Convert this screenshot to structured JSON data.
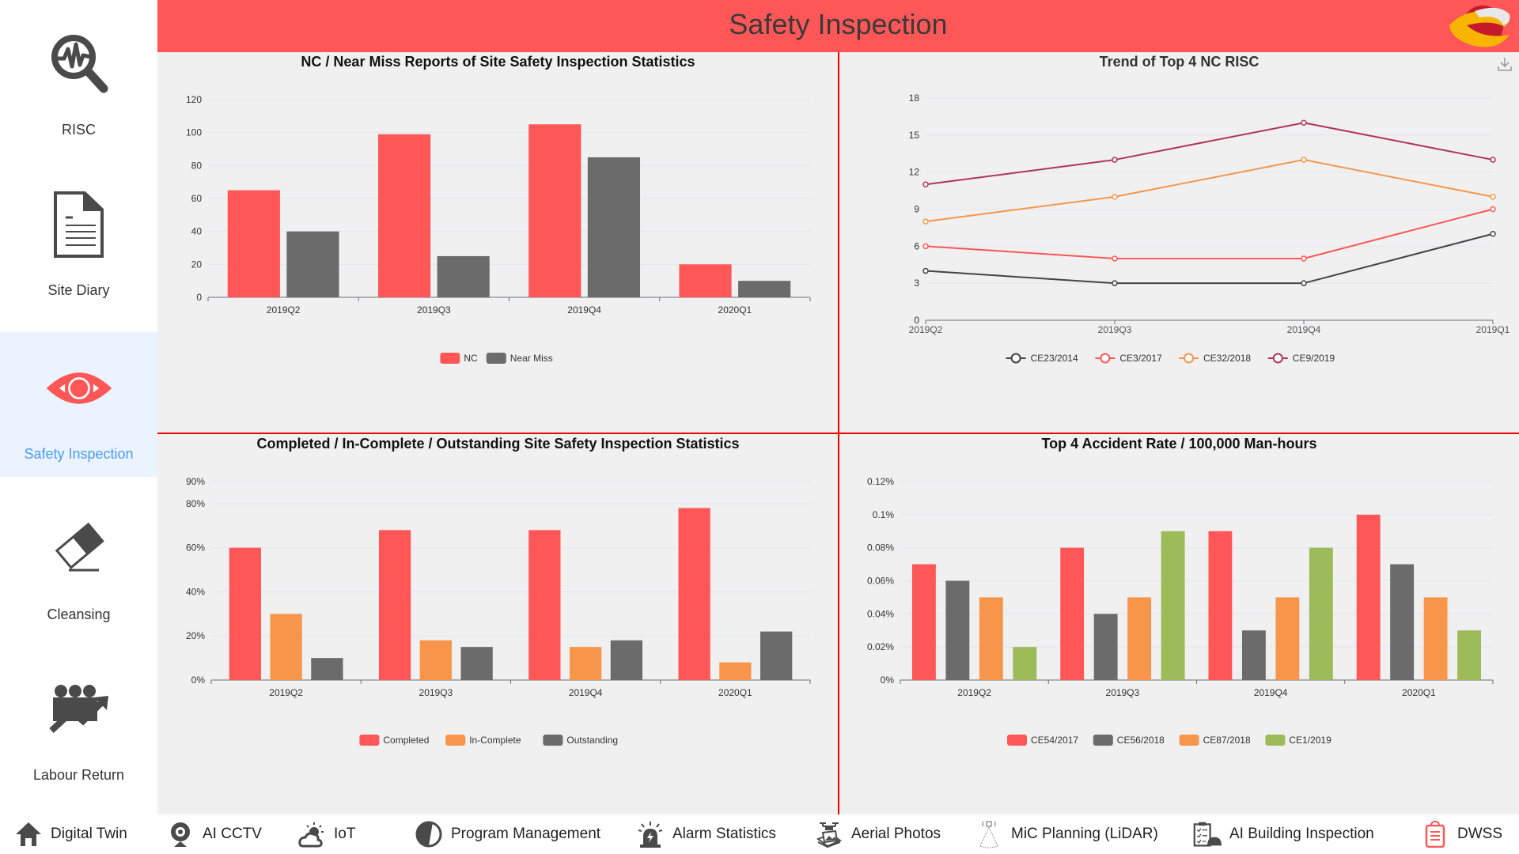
{
  "header": {
    "title": "Safety Inspection",
    "logo": "brand-logo"
  },
  "sidebar": {
    "active": "Safety Inspection",
    "items": [
      {
        "label": "RISC",
        "icon": "magnifier-pulse-icon"
      },
      {
        "label": "Site Diary",
        "icon": "document-icon"
      },
      {
        "label": "Safety Inspection",
        "icon": "eye-icon"
      },
      {
        "label": "Cleansing",
        "icon": "eraser-icon"
      },
      {
        "label": "Labour Return",
        "icon": "workers-trend-icon"
      }
    ]
  },
  "bottom_nav": [
    {
      "label": "Digital Twin",
      "icon": "home-icon"
    },
    {
      "label": "AI CCTV",
      "icon": "webcam-icon"
    },
    {
      "label": "IoT",
      "icon": "weather-cloud-icon"
    },
    {
      "label": "Program Management",
      "icon": "half-circle-icon"
    },
    {
      "label": "Alarm Statistics",
      "icon": "alarm-siren-icon"
    },
    {
      "label": "Aerial Photos",
      "icon": "drone-photos-icon"
    },
    {
      "label": "MiC Planning (LiDAR)",
      "icon": "lidar-icon"
    },
    {
      "label": "AI Building Inspection",
      "icon": "clipboard-helmet-icon"
    },
    {
      "label": "DWSS",
      "icon": "clipboard-red-icon"
    }
  ],
  "colors": {
    "accent": "#ff5757",
    "divider": "#e60000",
    "active_text": "#4a9cf5",
    "active_bg": "#eaf3fe"
  },
  "chart_data": [
    {
      "id": "nc-near-miss",
      "type": "bar",
      "title": "NC / Near Miss Reports of Site Safety Inspection Statistics",
      "categories": [
        "2019Q2",
        "2019Q3",
        "2019Q4",
        "2020Q1"
      ],
      "series": [
        {
          "name": "NC",
          "color": "#ff5757",
          "values": [
            65,
            99,
            105,
            20
          ]
        },
        {
          "name": "Near Miss",
          "color": "#6b6b6b",
          "values": [
            40,
            25,
            85,
            10
          ]
        }
      ],
      "yticks": [
        0,
        20,
        40,
        60,
        80,
        100,
        120
      ],
      "ytick_labels": [
        "0",
        "20",
        "40",
        "60",
        "80",
        "100",
        "120"
      ],
      "ylim": [
        0,
        120
      ],
      "grid": true,
      "legend": "bottom"
    },
    {
      "id": "nc-risc-trend",
      "type": "line",
      "title": "Trend of Top 4 NC RISC",
      "categories": [
        "2019Q2",
        "2019Q3",
        "2019Q4",
        "2019Q1"
      ],
      "series": [
        {
          "name": "CE23/2014",
          "color": "#444444",
          "values": [
            4,
            3,
            3,
            7
          ]
        },
        {
          "name": "CE3/2017",
          "color": "#ff5757",
          "values": [
            6,
            5,
            5,
            9
          ]
        },
        {
          "name": "CE32/2018",
          "color": "#f7964a",
          "values": [
            8,
            10,
            13,
            10
          ]
        },
        {
          "name": "CE9/2019",
          "color": "#b0355a",
          "values": [
            11,
            13,
            16,
            13
          ]
        }
      ],
      "yticks": [
        0,
        3,
        6,
        9,
        12,
        15,
        18
      ],
      "ytick_labels": [
        "0",
        "3",
        "6",
        "9",
        "12",
        "15",
        "18"
      ],
      "ylim": [
        0,
        18
      ],
      "grid": true,
      "legend": "bottom",
      "toolbox": "download"
    },
    {
      "id": "inspection-status",
      "type": "bar",
      "title": "Completed / In-Complete / Outstanding Site Safety Inspection Statistics",
      "categories": [
        "2019Q2",
        "2019Q3",
        "2019Q4",
        "2020Q1"
      ],
      "series": [
        {
          "name": "Completed",
          "color": "#ff5757",
          "values": [
            60,
            68,
            68,
            78
          ]
        },
        {
          "name": "In-Complete",
          "color": "#f7964a",
          "values": [
            30,
            18,
            15,
            8
          ]
        },
        {
          "name": "Outstanding",
          "color": "#6b6b6b",
          "values": [
            10,
            15,
            18,
            22
          ]
        }
      ],
      "yticks": [
        0,
        20,
        40,
        60,
        80,
        90
      ],
      "ytick_labels": [
        "0%",
        "20%",
        "40%",
        "60%",
        "80%",
        "90%"
      ],
      "ylim": [
        0,
        90
      ],
      "grid": true,
      "legend": "bottom"
    },
    {
      "id": "accident-rate",
      "type": "bar",
      "title": "Top 4 Accident Rate / 100,000 Man-hours",
      "categories": [
        "2019Q2",
        "2019Q3",
        "2019Q4",
        "2020Q1"
      ],
      "series": [
        {
          "name": "CE54/2017",
          "color": "#ff5757",
          "values": [
            0.07,
            0.08,
            0.09,
            0.1
          ]
        },
        {
          "name": "CE56/2018",
          "color": "#6b6b6b",
          "values": [
            0.06,
            0.04,
            0.03,
            0.07
          ]
        },
        {
          "name": "CE87/2018",
          "color": "#f7964a",
          "values": [
            0.05,
            0.05,
            0.05,
            0.05
          ]
        },
        {
          "name": "CE1/2019",
          "color": "#9dbb58",
          "values": [
            0.02,
            0.09,
            0.08,
            0.03
          ]
        }
      ],
      "yticks": [
        0,
        0.02,
        0.04,
        0.06,
        0.08,
        0.1,
        0.12
      ],
      "ytick_labels": [
        "0%",
        "0.02%",
        "0.04%",
        "0.06%",
        "0.08%",
        "0.1%",
        "0.12%"
      ],
      "ylim": [
        0,
        0.12
      ],
      "grid": true,
      "legend": "bottom"
    }
  ]
}
